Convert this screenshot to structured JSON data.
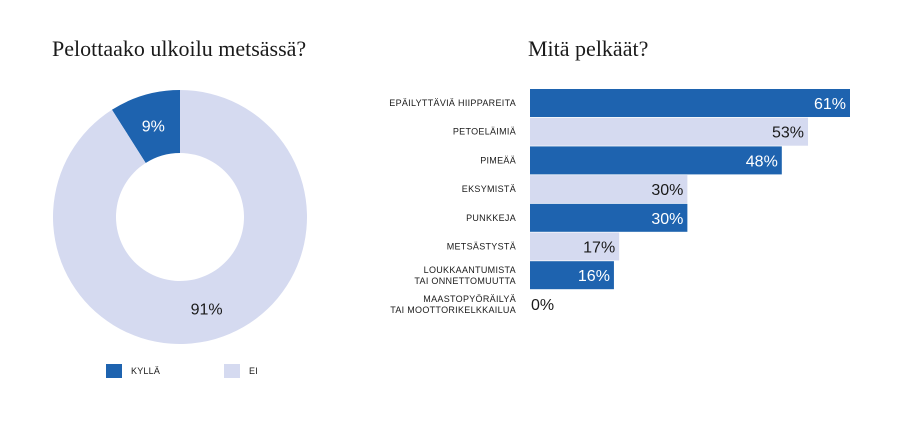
{
  "colors": {
    "accent": "#1E63AF",
    "light": "#D5DAF0",
    "text_dark": "#1a1a1a",
    "text_light": "#ffffff"
  },
  "chart_data": [
    {
      "type": "pie",
      "title": "Pelottaako ulkoilu metsässä?",
      "slices": [
        {
          "label": "KYLLÄ",
          "value": 9,
          "display": "9%",
          "color": "#1E63AF"
        },
        {
          "label": "EI",
          "value": 91,
          "display": "91%",
          "color": "#D5DAF0"
        }
      ],
      "legend": {
        "placement": "bottom",
        "entries": [
          "KYLLÄ",
          "EI"
        ]
      }
    },
    {
      "type": "bar",
      "orientation": "horizontal",
      "title": "Mitä pelkäät?",
      "max": 61,
      "categories": [
        [
          "EPÄILYTTÄVIÄ HIIPPAREITA"
        ],
        [
          "PETOELÄIMIÄ"
        ],
        [
          "PIMEÄÄ"
        ],
        [
          "EKSYMISTÄ"
        ],
        [
          "PUNKKEJA"
        ],
        [
          "METSÄSTYSTÄ"
        ],
        [
          "LOUKKAANTUMISTA",
          "TAI ONNETTOMUUTTA"
        ],
        [
          "MAASTOPYÖRÄILYÄ",
          "TAI MOOTTORIKELKKAILUA"
        ]
      ],
      "values": [
        61,
        53,
        48,
        30,
        30,
        17,
        16,
        0
      ],
      "labels": [
        "61%",
        "53%",
        "48%",
        "30%",
        "30%",
        "17%",
        "16%",
        "0%"
      ]
    }
  ]
}
